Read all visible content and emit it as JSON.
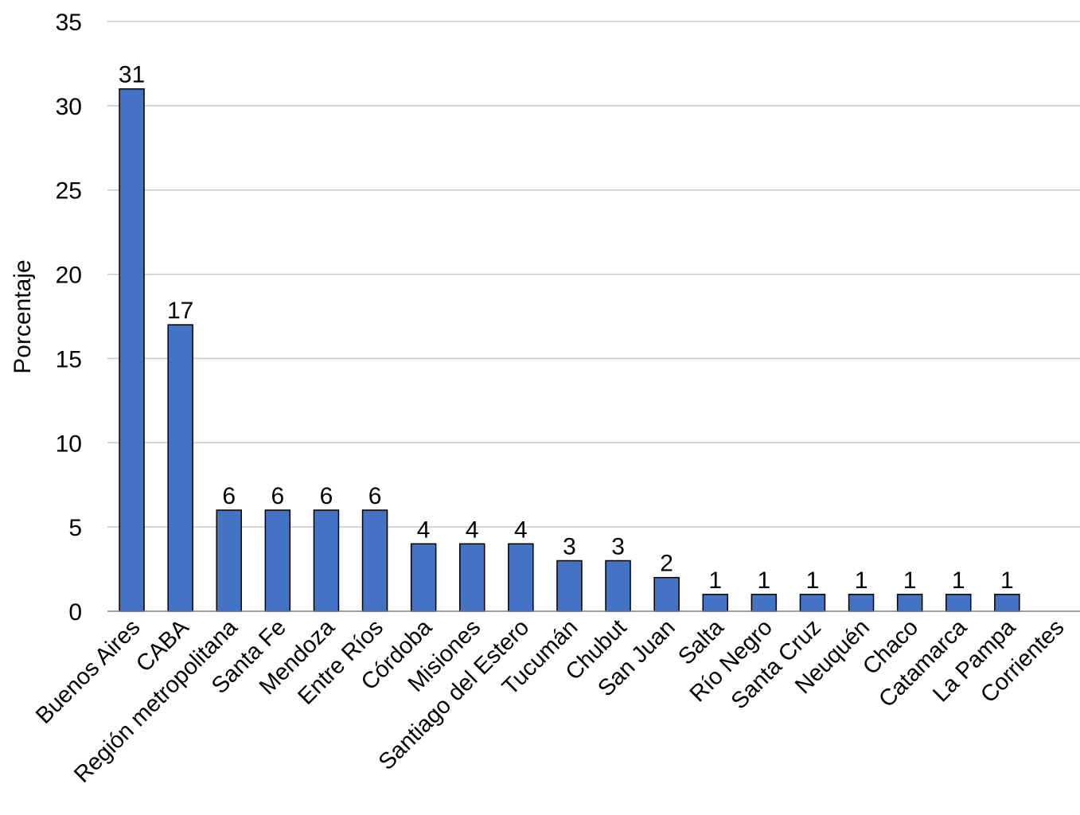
{
  "chart_data": {
    "type": "bar",
    "title": "",
    "xlabel": "",
    "ylabel": "Porcentaje",
    "ylim": [
      0,
      35
    ],
    "yticks": [
      0,
      5,
      10,
      15,
      20,
      25,
      30,
      35
    ],
    "grid": "horizontal",
    "bar_color": "#4472c4",
    "bar_edge_color": "#000000",
    "categories": [
      "Buenos Aires",
      "CABA",
      "Región metropolitana",
      "Santa Fe",
      "Mendoza",
      "Entre Ríos",
      "Córdoba",
      "Misiones",
      "Santiago del Estero",
      "Tucumán",
      "Chubut",
      "San Juan",
      "Salta",
      "Río Negro",
      "Santa Cruz",
      "Neuquén",
      "Chaco",
      "Catamarca",
      "La Pampa",
      "Corrientes"
    ],
    "values": [
      31,
      17,
      6,
      6,
      6,
      6,
      4,
      4,
      4,
      3,
      3,
      2,
      1,
      1,
      1,
      1,
      1,
      1,
      1,
      0
    ],
    "data_labels": [
      "31",
      "17",
      "6",
      "6",
      "6",
      "6",
      "4",
      "4",
      "4",
      "3",
      "3",
      "2",
      "1",
      "1",
      "1",
      "1",
      "1",
      "1",
      "1",
      ""
    ]
  }
}
